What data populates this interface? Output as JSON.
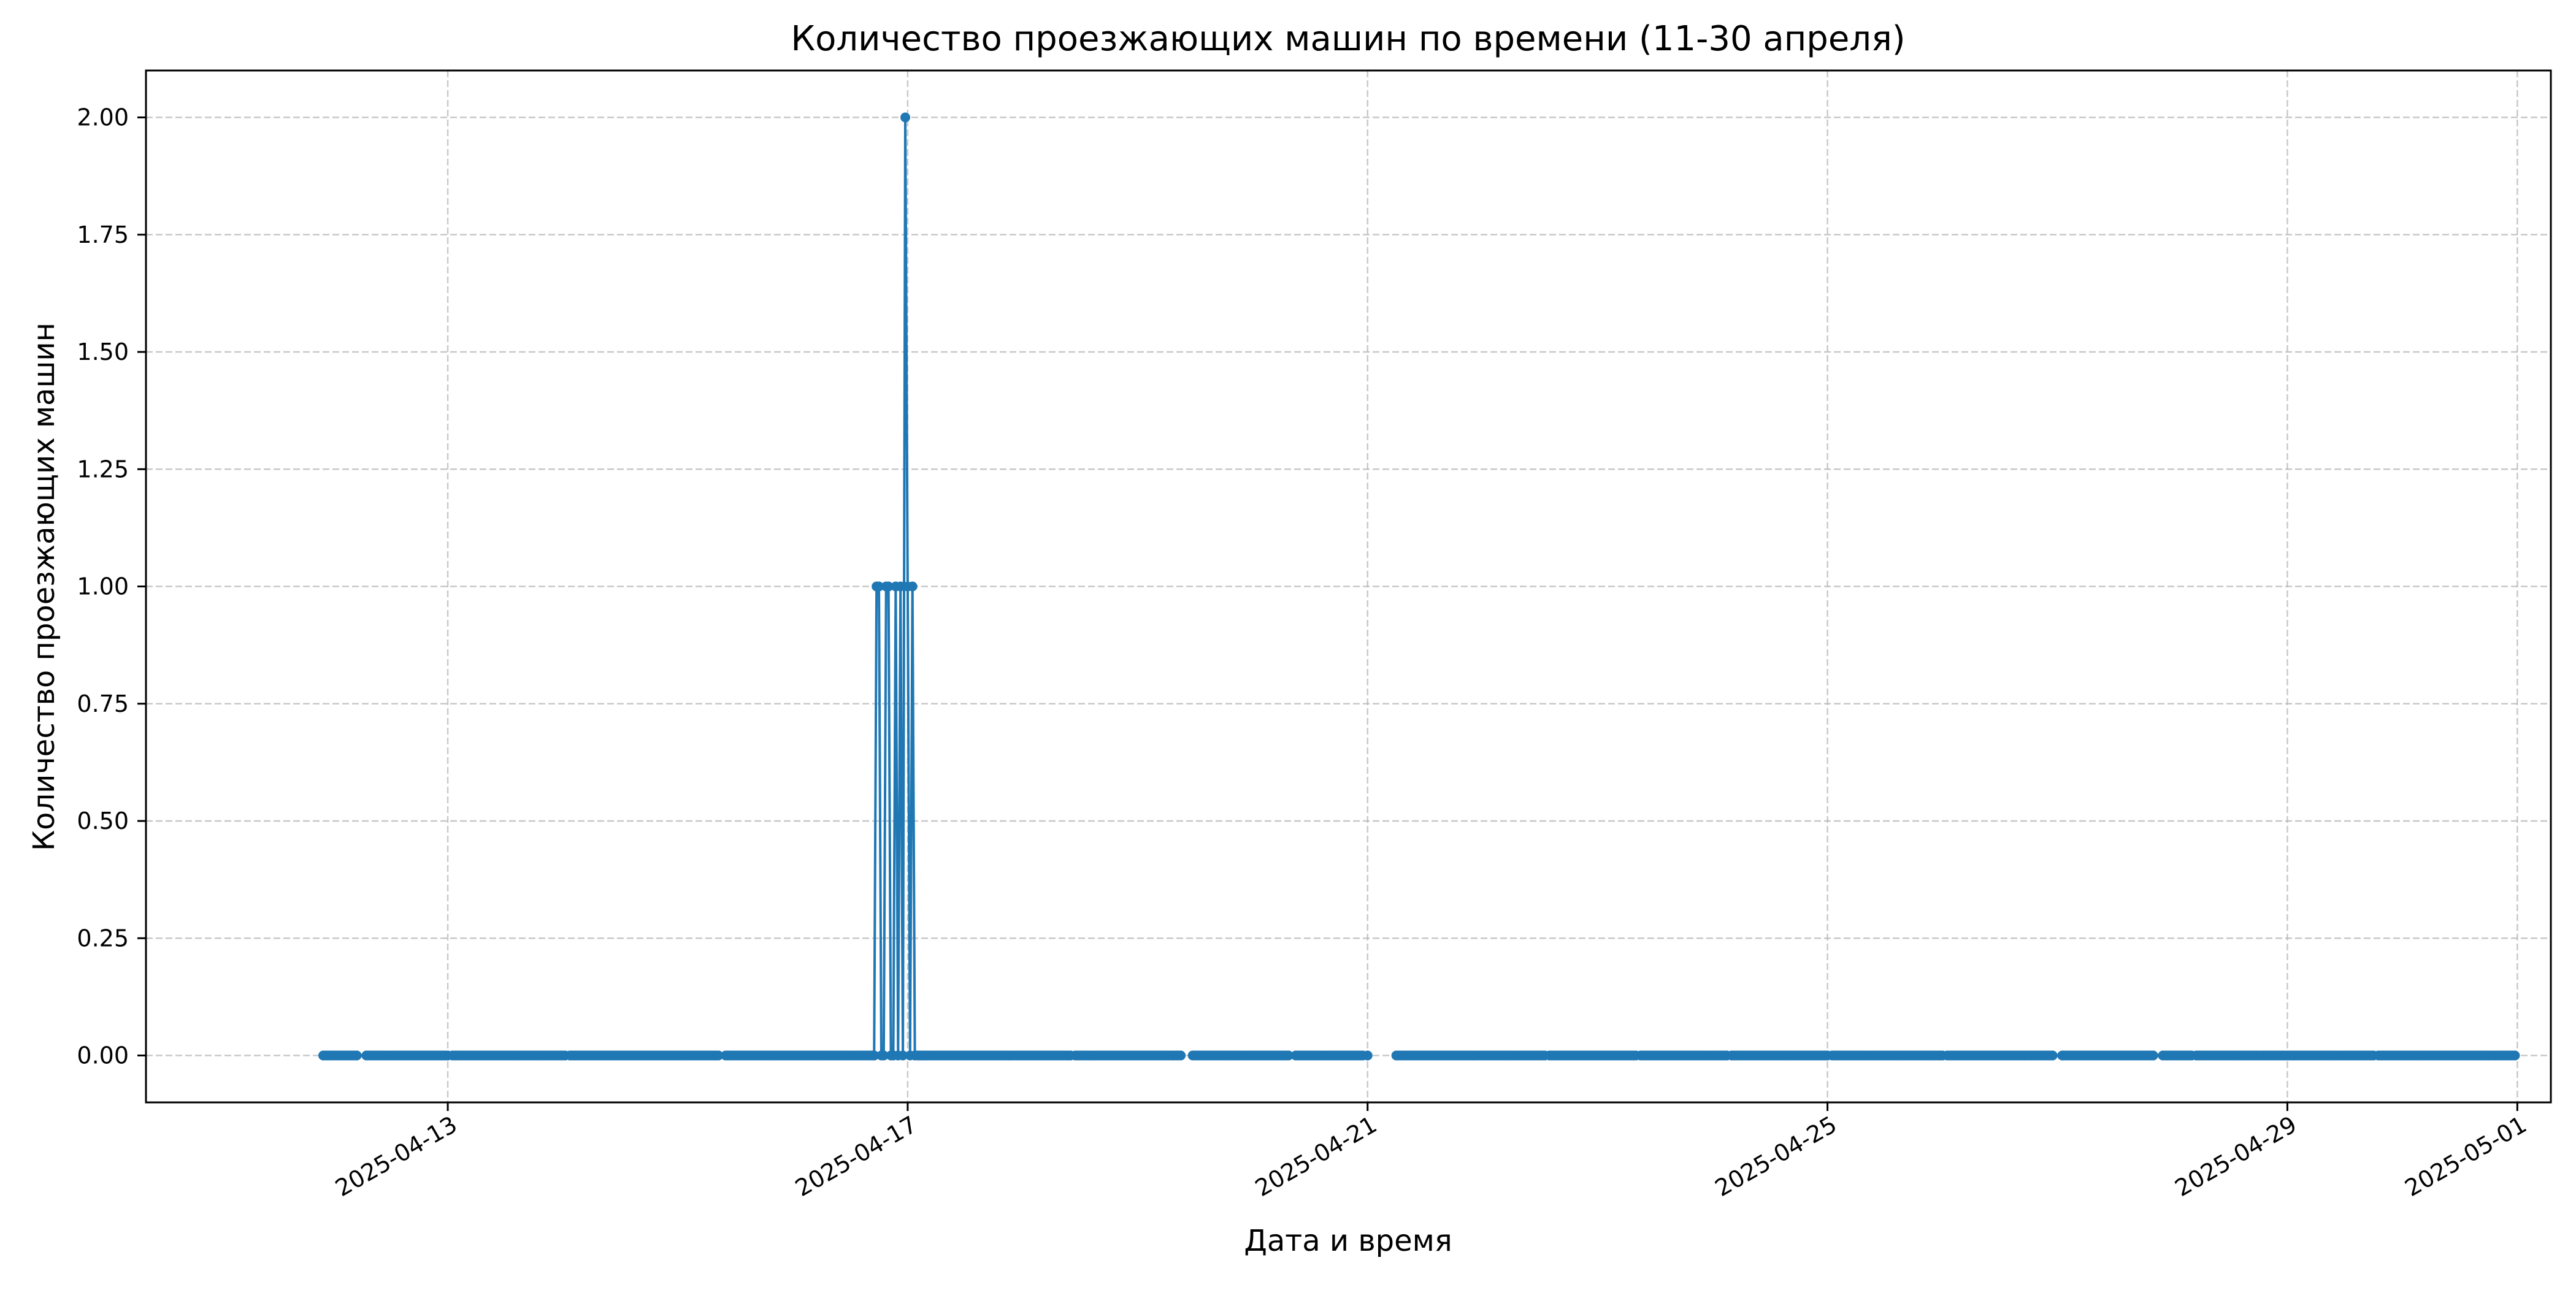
{
  "chart_data": {
    "type": "line",
    "title": "Количество проезжающих машин по времени (11-30 апреля)",
    "xlabel": "Дата и время",
    "ylabel": "Количество проезжающих машин",
    "x_axis_type": "datetime",
    "xlim": [
      "2025-04-10T09:00",
      "2025-05-01T07:00"
    ],
    "ylim": [
      -0.1,
      2.1
    ],
    "x_ticks": [
      "2025-04-13",
      "2025-04-17",
      "2025-04-21",
      "2025-04-25",
      "2025-04-29",
      "2025-05-01"
    ],
    "y_ticks": [
      "0.00",
      "0.25",
      "0.50",
      "0.75",
      "1.00",
      "1.25",
      "1.50",
      "1.75",
      "2.00"
    ],
    "grid": true,
    "legend": "none",
    "series": [
      {
        "color": "#1f77b4",
        "marker": "circle",
        "sampling_interval_minutes": 30,
        "baseline_value": 0,
        "segments": [
          [
            "2025-04-11T22:00",
            "2025-04-12T05:00"
          ],
          [
            "2025-04-12T07:00",
            "2025-04-13T00:00"
          ],
          [
            "2025-04-13T01:00",
            "2025-04-14T00:30"
          ],
          [
            "2025-04-14T01:30",
            "2025-04-15T08:30"
          ],
          [
            "2025-04-15T10:00",
            "2025-04-16T17:00"
          ],
          [
            "2025-04-17T03:00",
            "2025-04-18T10:00"
          ],
          [
            "2025-04-18T11:00",
            "2025-04-19T09:00"
          ],
          [
            "2025-04-19T11:30",
            "2025-04-20T07:30"
          ],
          [
            "2025-04-20T09:00",
            "2025-04-20T23:00"
          ],
          [
            "2025-04-21T06:00",
            "2025-04-22T13:00"
          ],
          [
            "2025-04-22T14:00",
            "2025-04-23T08:00"
          ],
          [
            "2025-04-23T09:00",
            "2025-04-24T03:00"
          ],
          [
            "2025-04-24T04:00",
            "2025-04-25T00:00"
          ],
          [
            "2025-04-25T01:00",
            "2025-04-26T00:00"
          ],
          [
            "2025-04-26T01:00",
            "2025-04-26T23:00"
          ],
          [
            "2025-04-27T01:00",
            "2025-04-27T20:00"
          ],
          [
            "2025-04-27T22:00",
            "2025-04-28T04:00"
          ],
          [
            "2025-04-28T05:00",
            "2025-04-29T18:00"
          ],
          [
            "2025-04-29T19:00",
            "2025-04-30T23:30"
          ]
        ],
        "points": [
          {
            "x": "2025-04-16T17:00",
            "y": 0
          },
          {
            "x": "2025-04-16T17:30",
            "y": 1
          },
          {
            "x": "2025-04-16T18:00",
            "y": 1
          },
          {
            "x": "2025-04-16T18:30",
            "y": 0
          },
          {
            "x": "2025-04-16T19:00",
            "y": 0
          },
          {
            "x": "2025-04-16T19:30",
            "y": 1
          },
          {
            "x": "2025-04-16T20:00",
            "y": 1
          },
          {
            "x": "2025-04-16T20:30",
            "y": 0
          },
          {
            "x": "2025-04-16T21:00",
            "y": 0
          },
          {
            "x": "2025-04-16T21:30",
            "y": 1
          },
          {
            "x": "2025-04-16T22:00",
            "y": 0
          },
          {
            "x": "2025-04-16T22:30",
            "y": 1
          },
          {
            "x": "2025-04-16T23:00",
            "y": 0
          },
          {
            "x": "2025-04-16T23:30",
            "y": 2
          },
          {
            "x": "2025-04-17T00:00",
            "y": 1
          },
          {
            "x": "2025-04-17T00:30",
            "y": 0
          },
          {
            "x": "2025-04-17T01:00",
            "y": 1
          },
          {
            "x": "2025-04-17T01:30",
            "y": 0
          },
          {
            "x": "2025-04-17T02:00",
            "y": 0
          },
          {
            "x": "2025-04-17T02:30",
            "y": 0
          },
          {
            "x": "2025-04-17T03:00",
            "y": 0
          }
        ],
        "isolated_points": [
          {
            "x": "2025-04-21T00:00",
            "y": 0
          }
        ]
      }
    ]
  }
}
